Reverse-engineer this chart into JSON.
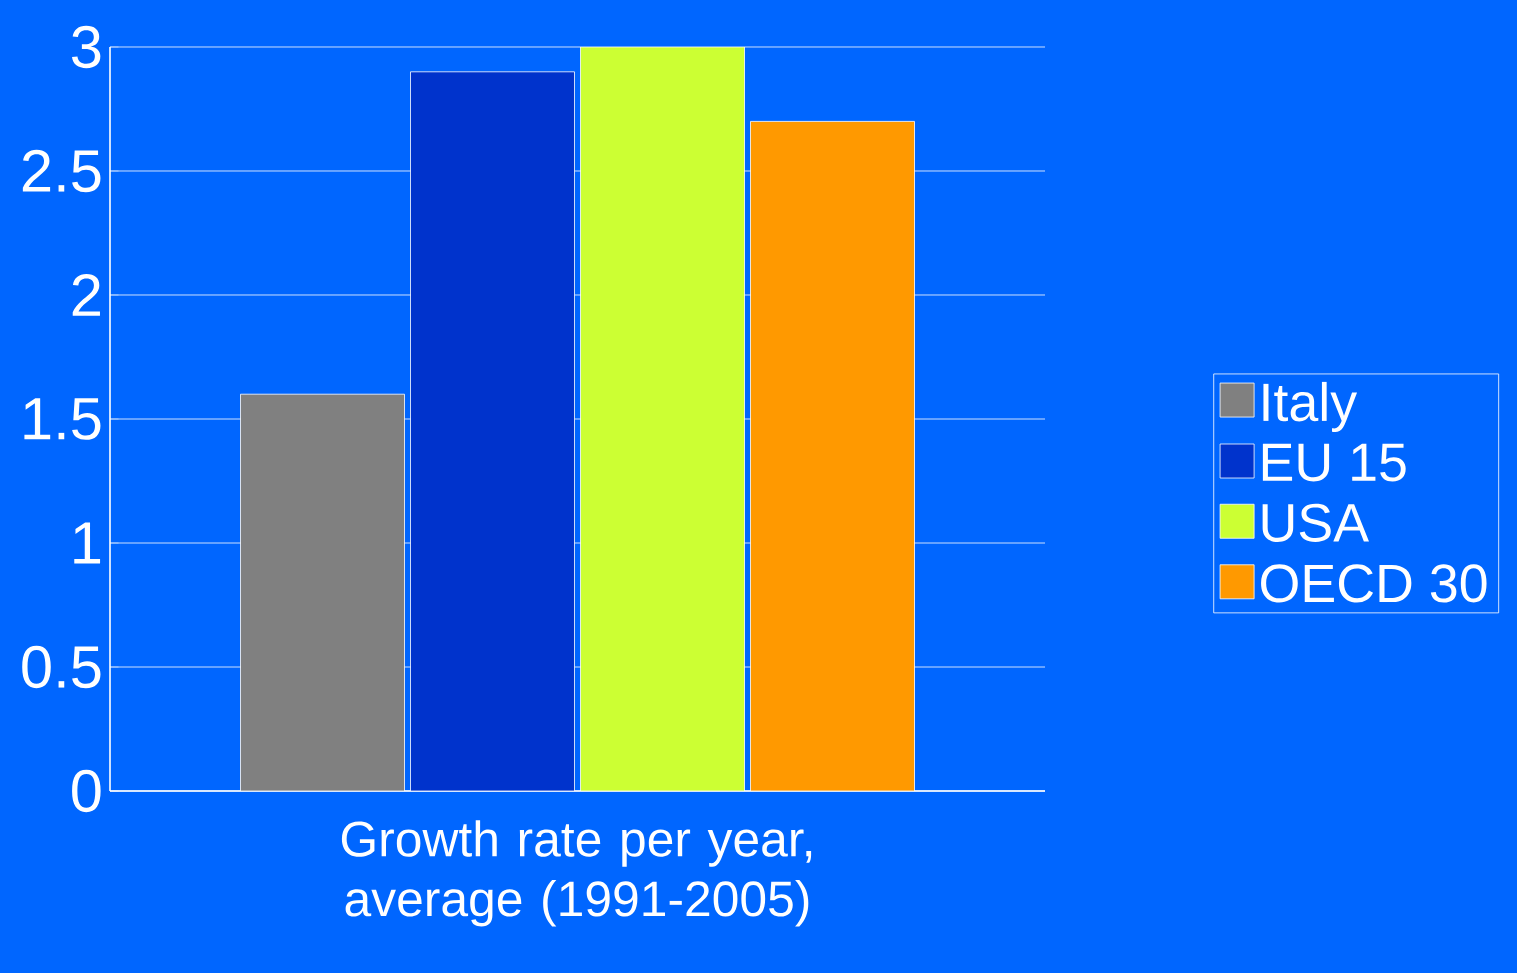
{
  "chart_data": {
    "type": "bar",
    "categories": [
      null
    ],
    "xlabel": "Growth rate per year, average (1991-2005)",
    "series": [
      {
        "name": "Italy",
        "color": "#808080",
        "values": [
          1.6
        ]
      },
      {
        "name": "EU 15",
        "color": "#0033cc",
        "values": [
          2.9
        ]
      },
      {
        "name": "USA",
        "color": "#ccff33",
        "values": [
          3.0
        ]
      },
      {
        "name": "OECD 30",
        "color": "#ff9900",
        "values": [
          2.7
        ]
      }
    ],
    "ylim": [
      0,
      3
    ],
    "yticks": [
      0,
      0.5,
      1,
      1.5,
      2,
      2.5,
      3
    ],
    "grid": "y",
    "legend": "right"
  }
}
